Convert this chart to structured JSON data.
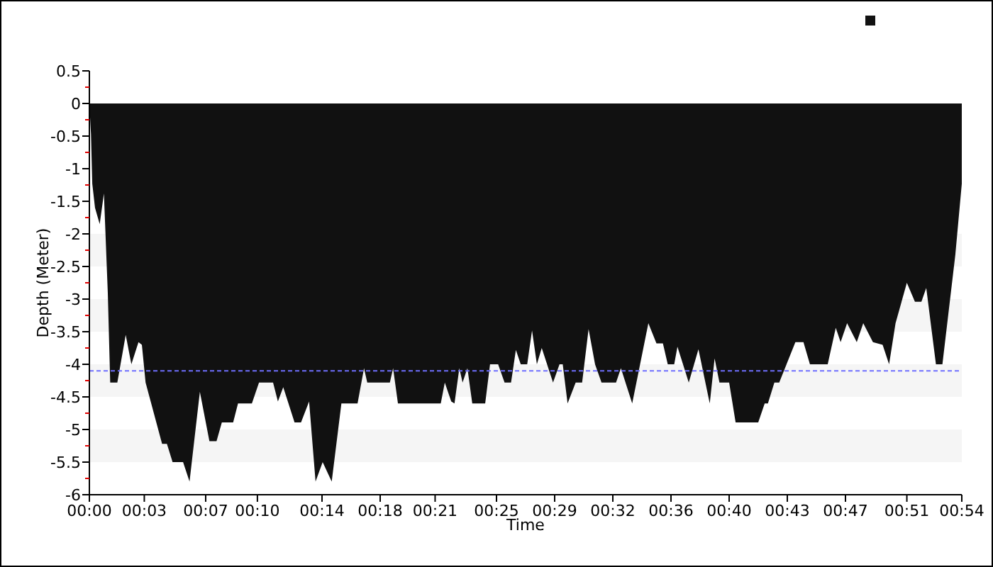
{
  "chart_data": {
    "type": "area",
    "xlabel": "Time",
    "ylabel": "Depth (Meter)",
    "xlim": [
      0,
      54
    ],
    "ylim": [
      -6,
      0.5
    ],
    "xticks": [
      {
        "value": 0,
        "label": "00:00"
      },
      {
        "value": 3.4,
        "label": "00:03"
      },
      {
        "value": 7.2,
        "label": "00:07"
      },
      {
        "value": 10.4,
        "label": "00:10"
      },
      {
        "value": 14.4,
        "label": "00:14"
      },
      {
        "value": 18,
        "label": "00:18"
      },
      {
        "value": 21.4,
        "label": "00:21"
      },
      {
        "value": 25.2,
        "label": "00:25"
      },
      {
        "value": 28.8,
        "label": "00:29"
      },
      {
        "value": 32.4,
        "label": "00:32"
      },
      {
        "value": 36,
        "label": "00:36"
      },
      {
        "value": 39.6,
        "label": "00:40"
      },
      {
        "value": 43.2,
        "label": "00:43"
      },
      {
        "value": 46.8,
        "label": "00:47"
      },
      {
        "value": 50.6,
        "label": "00:51"
      },
      {
        "value": 54,
        "label": "00:54"
      }
    ],
    "yticks": [
      0.5,
      {
        "value": 0.25,
        "label": null
      },
      0,
      {
        "value": -0.25,
        "label": null
      },
      -0.5,
      {
        "value": -0.75,
        "label": null
      },
      -1,
      {
        "value": -1.25,
        "label": null
      },
      -1.5,
      {
        "value": -1.75,
        "label": null
      },
      -2,
      {
        "value": -2.25,
        "label": null
      },
      -2.5,
      {
        "value": -2.75,
        "label": null
      },
      -3,
      {
        "value": -3.25,
        "label": null
      },
      -3.5,
      {
        "value": -3.75,
        "label": null
      },
      -4,
      {
        "value": -4.25,
        "label": null
      },
      -4.5,
      {
        "value": -4.75,
        "label": null
      },
      -5,
      {
        "value": -5.25,
        "label": null
      },
      -5.5,
      {
        "value": -5.75,
        "label": null
      },
      -6
    ],
    "bands": [
      {
        "axis": "y",
        "from": -2,
        "to": -2.5,
        "color": "#f5f5f5"
      },
      {
        "axis": "y",
        "from": -3,
        "to": -3.5,
        "color": "#f5f5f5"
      },
      {
        "axis": "y",
        "from": -4,
        "to": -4.5,
        "color": "#f5f5f5"
      },
      {
        "axis": "y",
        "from": -5,
        "to": -5.5,
        "color": "#f5f5f5"
      }
    ],
    "ref_lines": [
      {
        "axis": "y",
        "value": -4.1,
        "color": "#6f6fff",
        "line_style": "dashed"
      }
    ],
    "series": [
      {
        "color": "#111111",
        "x": [
          0,
          0.1,
          0.18,
          0.35,
          0.64,
          0.9,
          1.14,
          1.29,
          1.73,
          2.25,
          2.6,
          3.04,
          3.25,
          3.48,
          4.5,
          4.8,
          5.15,
          5.8,
          6.2,
          6.84,
          7.43,
          7.87,
          8.2,
          8.9,
          9.2,
          10.06,
          10.5,
          11.37,
          11.67,
          12,
          12.7,
          13.1,
          13.6,
          14,
          14.44,
          15,
          15.6,
          16.6,
          17,
          17.2,
          18.6,
          18.8,
          19.1,
          21.75,
          22,
          22.4,
          22.6,
          22.9,
          23.1,
          23.4,
          23.7,
          24.5,
          24.8,
          25.3,
          25.7,
          26.1,
          26.4,
          26.7,
          27.1,
          27.4,
          27.7,
          28,
          28.7,
          29.1,
          29.3,
          29.6,
          30.1,
          30.5,
          30.9,
          31.3,
          31.7,
          32.6,
          32.9,
          33.6,
          34.6,
          35.1,
          35.5,
          35.8,
          36.2,
          36.4,
          37.1,
          37.7,
          38.4,
          38.7,
          39,
          39.6,
          40,
          41.4,
          41.8,
          42,
          42.4,
          42.7,
          43.7,
          44.2,
          44.6,
          45.7,
          46.2,
          46.5,
          46.9,
          47.5,
          47.9,
          48.5,
          49.1,
          49.5,
          49.9,
          50.6,
          51.1,
          51.5,
          51.8,
          52.4,
          52.8,
          53.6,
          54
        ],
        "values": [
          0,
          -0.47,
          -1.23,
          -1.6,
          -1.85,
          -1.38,
          -2.9,
          -4.28,
          -4.28,
          -3.55,
          -4,
          -3.66,
          -3.7,
          -4.28,
          -5.22,
          -5.22,
          -5.5,
          -5.5,
          -5.8,
          -4.42,
          -5.18,
          -5.18,
          -4.89,
          -4.89,
          -4.6,
          -4.6,
          -4.28,
          -4.28,
          -4.57,
          -4.35,
          -4.89,
          -4.89,
          -4.57,
          -5.8,
          -5.5,
          -5.8,
          -4.6,
          -4.6,
          -4.06,
          -4.28,
          -4.28,
          -4.06,
          -4.6,
          -4.6,
          -4.28,
          -4.57,
          -4.6,
          -4.06,
          -4.28,
          -4.06,
          -4.6,
          -4.6,
          -4,
          -4,
          -4.28,
          -4.28,
          -3.78,
          -4,
          -4,
          -3.48,
          -4,
          -3.75,
          -4.28,
          -4,
          -4,
          -4.6,
          -4.28,
          -4.28,
          -3.46,
          -4,
          -4.28,
          -4.28,
          -4.06,
          -4.6,
          -3.37,
          -3.68,
          -3.68,
          -4,
          -4,
          -3.73,
          -4.28,
          -3.77,
          -4.6,
          -3.91,
          -4.28,
          -4.28,
          -4.89,
          -4.89,
          -4.6,
          -4.6,
          -4.28,
          -4.28,
          -3.66,
          -3.66,
          -4,
          -4,
          -3.44,
          -3.66,
          -3.37,
          -3.66,
          -3.37,
          -3.66,
          -3.7,
          -4,
          -3.37,
          -2.75,
          -3.04,
          -3.04,
          -2.83,
          -4,
          -4,
          -2.32,
          -1.23
        ]
      }
    ]
  }
}
